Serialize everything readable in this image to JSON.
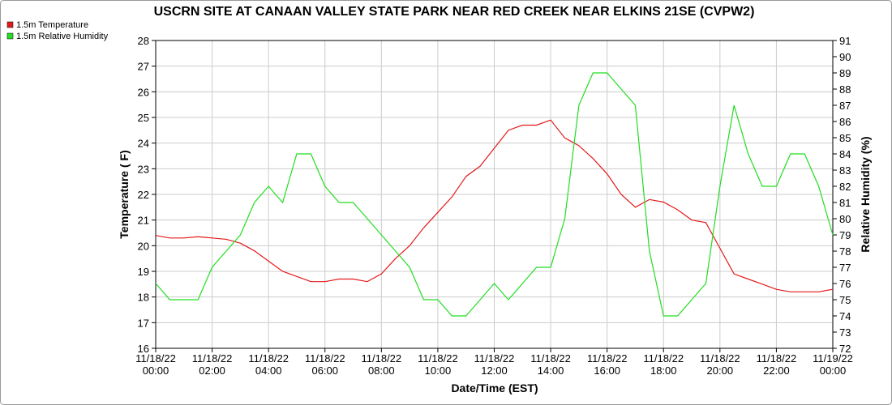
{
  "chart_data": {
    "type": "line",
    "title": "USCRN SITE AT CANAAN VALLEY STATE PARK NEAR RED CREEK NEAR ELKINS 21SE (CVPW2)",
    "x_label": "Date/Time (EST)",
    "y_label": "Temperature ( F)",
    "y2_label": "Relative Humidity (%)",
    "x": [
      0,
      0.5,
      1,
      1.5,
      2,
      2.5,
      3,
      3.5,
      4,
      4.5,
      5,
      5.5,
      6,
      6.5,
      7,
      7.5,
      8,
      8.5,
      9,
      9.5,
      10,
      10.5,
      11,
      11.5,
      12,
      12.5,
      13,
      13.5,
      14,
      14.5,
      15,
      15.5,
      16,
      16.5,
      17,
      17.5,
      18,
      18.5,
      19,
      19.5,
      20,
      20.5,
      21,
      21.5,
      22,
      22.5,
      23,
      23.5,
      24
    ],
    "series": [
      {
        "name": "1.5m Temperature",
        "color": "#e31a1c",
        "values": [
          20.4,
          20.3,
          20.3,
          20.35,
          20.3,
          20.25,
          20.1,
          19.8,
          19.4,
          19.0,
          18.8,
          18.6,
          18.6,
          18.7,
          18.7,
          18.6,
          18.9,
          19.5,
          20.0,
          20.7,
          21.3,
          21.9,
          22.7,
          23.1,
          23.8,
          24.5,
          24.7,
          24.7,
          24.9,
          24.2,
          23.9,
          23.4,
          22.8,
          22.0,
          21.5,
          21.8,
          21.7,
          21.4,
          21.0,
          20.9,
          19.9,
          18.9,
          18.7,
          18.5,
          18.3,
          18.2,
          18.2,
          18.2,
          18.3
        ]
      },
      {
        "name": "1.5m Relative Humidity",
        "color": "#22dd22",
        "axis": "y2",
        "values": [
          76,
          75,
          75,
          75,
          77,
          78,
          79,
          81,
          82,
          81,
          84,
          84,
          82,
          81,
          81,
          80,
          79,
          78,
          77,
          75,
          75,
          74,
          74,
          75,
          76,
          75,
          76,
          77,
          77,
          80,
          87,
          89,
          89,
          88,
          87,
          78,
          74,
          74,
          75,
          76,
          82,
          87,
          84,
          82,
          82,
          84,
          84,
          82,
          79
        ]
      }
    ],
    "xlim": [
      0,
      24
    ],
    "xticks": [
      {
        "value": 0,
        "label": "11/18/22 00:00"
      },
      {
        "value": 2,
        "label": "11/18/22 02:00"
      },
      {
        "value": 4,
        "label": "11/18/22 04:00"
      },
      {
        "value": 6,
        "label": "11/18/22 06:00"
      },
      {
        "value": 8,
        "label": "11/18/22 08:00"
      },
      {
        "value": 10,
        "label": "11/18/22 10:00"
      },
      {
        "value": 12,
        "label": "11/18/22 12:00"
      },
      {
        "value": 14,
        "label": "11/18/22 14:00"
      },
      {
        "value": 16,
        "label": "11/18/22 16:00"
      },
      {
        "value": 18,
        "label": "11/18/22 18:00"
      },
      {
        "value": 20,
        "label": "11/18/22 20:00"
      },
      {
        "value": 22,
        "label": "11/18/22 22:00"
      },
      {
        "value": 24,
        "label": "11/19/22 00:00"
      }
    ],
    "ylim": [
      16,
      28
    ],
    "yticks": [
      16,
      17,
      18,
      19,
      20,
      21,
      22,
      23,
      24,
      25,
      26,
      27,
      28
    ],
    "y2lim": [
      72,
      91
    ],
    "y2ticks": [
      72,
      73,
      74,
      75,
      76,
      77,
      78,
      79,
      80,
      81,
      82,
      83,
      84,
      85,
      86,
      87,
      88,
      89,
      90,
      91
    ],
    "grid": true,
    "legend": "top-left"
  }
}
